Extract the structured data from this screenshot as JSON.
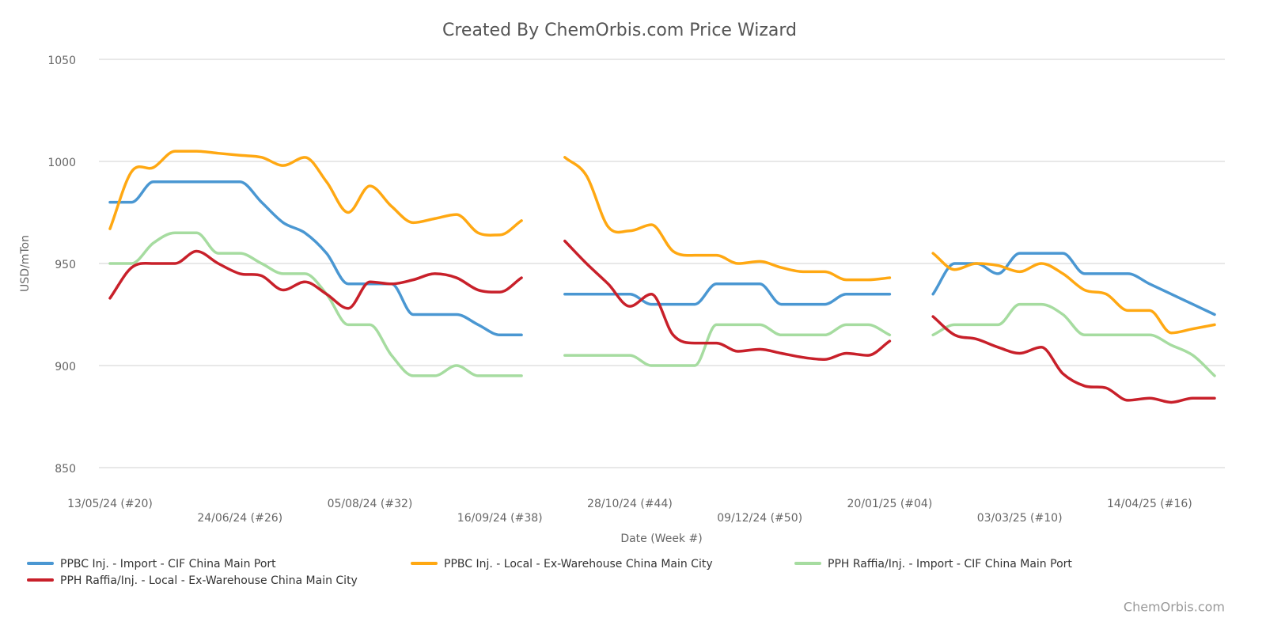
{
  "chart_data": {
    "type": "line",
    "title": "Created By ChemOrbis.com Price Wizard",
    "y_label": "USD/mTon",
    "x_label": "Date (Week #)",
    "credits": "ChemOrbis.com",
    "categories": [
      "13/05/24 (#20)",
      null,
      null,
      null,
      null,
      null,
      "24/06/24 (#26)",
      null,
      null,
      null,
      null,
      null,
      "05/08/24 (#32)",
      null,
      null,
      null,
      null,
      null,
      "16/09/24 (#38)",
      null,
      null,
      null,
      null,
      null,
      "28/10/24 (#44)",
      null,
      null,
      null,
      null,
      null,
      "09/12/24 (#50)",
      null,
      null,
      null,
      null,
      null,
      "20/01/25 (#04)",
      null,
      null,
      null,
      null,
      null,
      "03/03/25 (#10)",
      null,
      null,
      null,
      null,
      null,
      "14/04/25 (#16)",
      null,
      null,
      null
    ],
    "ylim": [
      850,
      1050
    ],
    "yticks": [
      850,
      900,
      950,
      1000,
      1050
    ],
    "grid": true,
    "legend": "bottom",
    "series": [
      {
        "name": "PPBC Inj. - Import - CIF China Main Port",
        "color": "#4a97d2",
        "values": [
          980,
          980,
          990,
          990,
          990,
          990,
          990,
          980,
          970,
          965,
          955,
          940,
          940,
          940,
          925,
          925,
          925,
          920,
          915,
          915,
          null,
          935,
          935,
          935,
          935,
          930,
          930,
          930,
          940,
          940,
          940,
          930,
          930,
          930,
          935,
          935,
          935,
          null,
          935,
          950,
          950,
          945,
          955,
          955,
          955,
          945,
          945,
          945,
          940,
          935,
          930,
          925
        ]
      },
      {
        "name": "PPBC Inj. - Local - Ex-Warehouse China Main City",
        "color": "#ffa812",
        "values": [
          967,
          995,
          997,
          1005,
          1005,
          1004,
          1003,
          1002,
          998,
          1002,
          990,
          975,
          988,
          978,
          970,
          972,
          974,
          965,
          964,
          971,
          null,
          1002,
          993,
          968,
          966,
          969,
          956,
          954,
          954,
          950,
          951,
          948,
          946,
          946,
          942,
          942,
          943,
          null,
          955,
          947,
          950,
          949,
          946,
          950,
          945,
          937,
          935,
          927,
          927,
          916,
          918,
          920
        ]
      },
      {
        "name": "PPH Raffia/Inj. - Import - CIF China Main Port",
        "color": "#a6dca0",
        "values": [
          950,
          950,
          960,
          965,
          965,
          955,
          955,
          950,
          945,
          945,
          935,
          920,
          920,
          905,
          895,
          895,
          900,
          895,
          895,
          895,
          null,
          905,
          905,
          905,
          905,
          900,
          900,
          900,
          920,
          920,
          920,
          915,
          915,
          915,
          920,
          920,
          915,
          null,
          915,
          920,
          920,
          920,
          930,
          930,
          925,
          915,
          915,
          915,
          915,
          910,
          905,
          895
        ]
      },
      {
        "name": "PPH Raffia/Inj. - Local - Ex-Warehouse China Main City",
        "color": "#c8202a",
        "values": [
          933,
          948,
          950,
          950,
          956,
          950,
          945,
          944,
          937,
          941,
          935,
          928,
          941,
          940,
          942,
          945,
          943,
          937,
          936,
          943,
          null,
          961,
          950,
          940,
          929,
          935,
          915,
          911,
          911,
          907,
          908,
          906,
          904,
          903,
          906,
          905,
          912,
          null,
          924,
          915,
          913,
          909,
          906,
          909,
          896,
          890,
          889,
          883,
          884,
          882,
          884,
          884
        ]
      }
    ]
  }
}
